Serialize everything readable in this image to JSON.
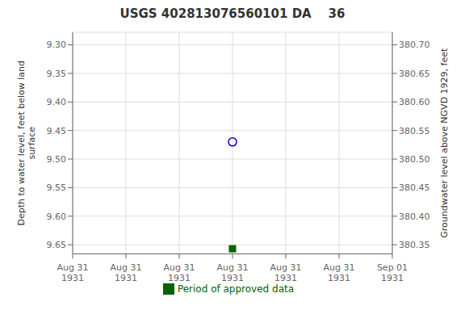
{
  "chart_data": {
    "type": "scatter",
    "title": "USGS 402813076560101 DA    36",
    "ylabel": "Depth to water level, feet below land\nsurface",
    "y2label": "Groundwater level above NGVD 1929, feet",
    "categories": [
      "Aug 31\n1931",
      "Aug 31\n1931",
      "Aug 31\n1931",
      "Aug 31\n1931",
      "Aug 31\n1931",
      "Aug 31\n1931",
      "Sep 01\n1931"
    ],
    "series": [
      {
        "values": [
          null,
          null,
          null,
          9.47,
          null,
          null,
          null
        ],
        "color": "#0000bb",
        "marker": "open_circle"
      },
      {
        "name": "Period of approved data",
        "values": [
          null,
          null,
          null,
          9.657,
          null,
          null,
          null
        ],
        "color": "#006400",
        "marker": "square"
      }
    ],
    "ylim": [
      9.666,
      9.278
    ],
    "yticks": [
      {
        "value": 9.3,
        "label": "9.30"
      },
      9.35,
      {
        "value": 9.4,
        "label": "9.40"
      },
      9.45,
      {
        "value": 9.5,
        "label": "9.50"
      },
      9.55,
      {
        "value": 9.6,
        "label": "9.60"
      },
      9.65
    ],
    "y2lim": [
      380.334,
      380.722
    ],
    "y2ticks": [
      {
        "value": 380.7,
        "label": "380.70"
      },
      380.65,
      {
        "value": 380.6,
        "label": "380.60"
      },
      380.55,
      {
        "value": 380.5,
        "label": "380.50"
      },
      380.45,
      {
        "value": 380.4,
        "label": "380.40"
      },
      380.35
    ],
    "grid": true,
    "legend": "bottom"
  }
}
